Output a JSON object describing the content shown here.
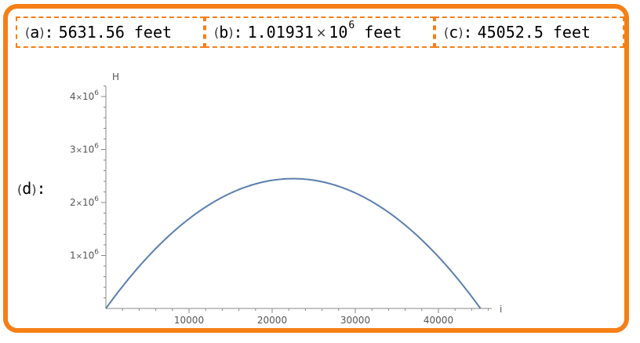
{
  "answers": {
    "a": {
      "label": "a",
      "value": "5631.56",
      "unit": "feet"
    },
    "b": {
      "label": "b",
      "mantissa": "1.01931",
      "times": "×",
      "base": "10",
      "exponent": "6",
      "unit": "feet"
    },
    "c": {
      "label": "c",
      "value": "45052.5",
      "unit": "feet"
    },
    "d": {
      "label": "d"
    }
  },
  "punct": {
    "open": "(",
    "close": ")",
    "colon": ":"
  },
  "colors": {
    "frame": "#f57f17",
    "curve": "#5b7fad",
    "axis": "#888888"
  },
  "chart_data": {
    "type": "line",
    "xlabel": "i",
    "ylabel": "H",
    "xlim": [
      0,
      46500
    ],
    "ylim": [
      0,
      4350000
    ],
    "x_ticks": [
      {
        "value": 10000,
        "label": "10000"
      },
      {
        "value": 20000,
        "label": "20000"
      },
      {
        "value": 30000,
        "label": "30000"
      },
      {
        "value": 40000,
        "label": "40000"
      }
    ],
    "y_ticks": [
      {
        "value": 1000000,
        "coef": "1",
        "times": "×",
        "base": "10",
        "exp": "6"
      },
      {
        "value": 2000000,
        "coef": "2",
        "times": "×",
        "base": "10",
        "exp": "6"
      },
      {
        "value": 3000000,
        "coef": "3",
        "times": "×",
        "base": "10",
        "exp": "6"
      },
      {
        "value": 4000000,
        "coef": "4",
        "times": "×",
        "base": "10",
        "exp": "6"
      }
    ],
    "series": [
      {
        "x": [
          0,
          2500,
          5000,
          7500,
          10000,
          12500,
          15000,
          17500,
          20000,
          22526,
          25000,
          27500,
          30000,
          32500,
          35000,
          37500,
          40000,
          42500,
          45052
        ],
        "y": [
          0,
          429000,
          820000,
          1172000,
          1485000,
          1759000,
          1990000,
          2183000,
          2337000,
          2450000,
          2337000,
          2183000,
          1990000,
          1759000,
          1485000,
          1172000,
          820000,
          429000,
          0
        ]
      }
    ]
  }
}
